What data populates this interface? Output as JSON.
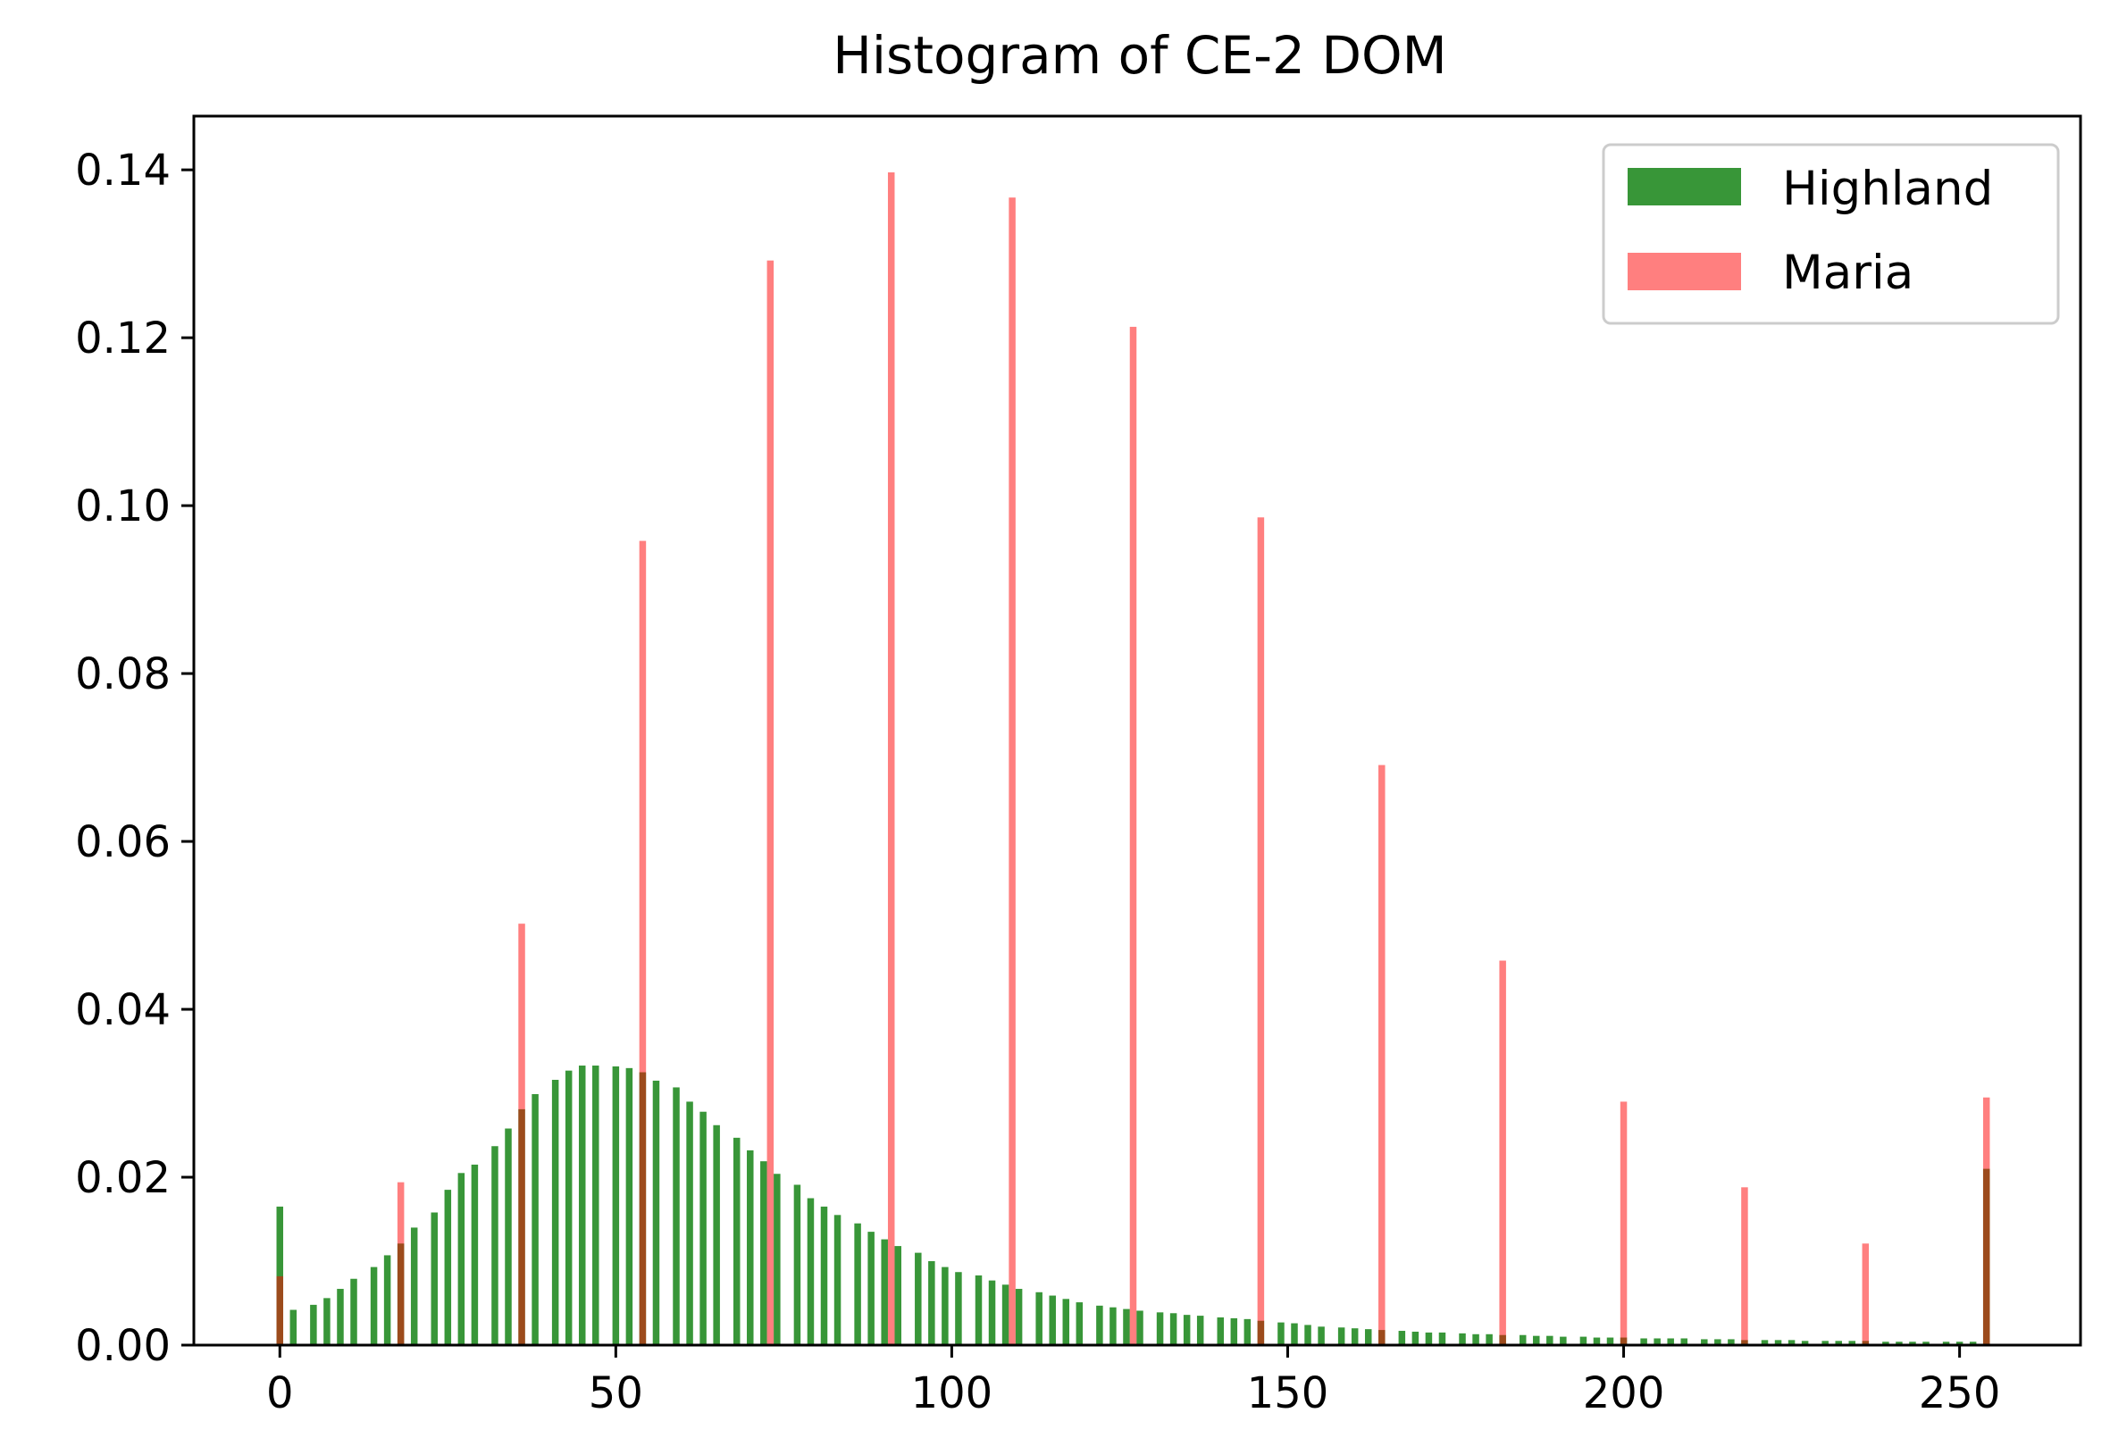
{
  "chart_data": {
    "type": "bar",
    "title": "Histogram of CE-2 DOM",
    "xlabel": "",
    "ylabel": "",
    "xlim": [
      -12.8,
      268
    ],
    "ylim": [
      0,
      0.1464
    ],
    "x_ticks": [
      "0",
      "50",
      "100",
      "150",
      "200",
      "250"
    ],
    "x_tick_values": [
      0,
      50,
      100,
      150,
      200,
      250
    ],
    "y_ticks": [
      "0.00",
      "0.02",
      "0.04",
      "0.06",
      "0.08",
      "0.10",
      "0.12",
      "0.14"
    ],
    "y_tick_values": [
      0,
      0.02,
      0.04,
      0.06,
      0.08,
      0.1,
      0.12,
      0.14
    ],
    "grid": false,
    "legend": {
      "position": "top-right"
    },
    "series": [
      {
        "name": "Highland",
        "color": "#228B22",
        "alpha": 0.9,
        "x": [
          0,
          2,
          5,
          7,
          9,
          11,
          14,
          16,
          18,
          20,
          23,
          25,
          27,
          29,
          32,
          34,
          36,
          38,
          41,
          43,
          45,
          47,
          50,
          52,
          54,
          56,
          59,
          61,
          63,
          65,
          68,
          70,
          72,
          74,
          77,
          79,
          81,
          83,
          86,
          88,
          90,
          92,
          95,
          97,
          99,
          101,
          104,
          106,
          108,
          110,
          113,
          115,
          117,
          119,
          122,
          124,
          126,
          128,
          131,
          133,
          135,
          137,
          140,
          142,
          144,
          146,
          149,
          151,
          153,
          155,
          158,
          160,
          162,
          164,
          167,
          169,
          171,
          173,
          176,
          178,
          180,
          182,
          185,
          187,
          189,
          191,
          194,
          196,
          198,
          200,
          203,
          205,
          207,
          209,
          212,
          214,
          216,
          218,
          221,
          223,
          225,
          227,
          230,
          232,
          234,
          236,
          239,
          241,
          243,
          245,
          248,
          250,
          252,
          254
        ],
        "values": [
          0.0165,
          0.0042,
          0.0048,
          0.0056,
          0.0067,
          0.0079,
          0.0093,
          0.0107,
          0.0121,
          0.014,
          0.0158,
          0.0185,
          0.0205,
          0.0215,
          0.0237,
          0.0258,
          0.0281,
          0.0299,
          0.0316,
          0.0327,
          0.0333,
          0.0333,
          0.0332,
          0.033,
          0.0325,
          0.0315,
          0.0307,
          0.029,
          0.0278,
          0.0262,
          0.0247,
          0.0232,
          0.0219,
          0.0204,
          0.0191,
          0.0175,
          0.0165,
          0.0155,
          0.0145,
          0.0135,
          0.0126,
          0.0118,
          0.011,
          0.01,
          0.0093,
          0.0087,
          0.0083,
          0.0077,
          0.0072,
          0.0067,
          0.0063,
          0.0059,
          0.0055,
          0.0051,
          0.0047,
          0.0045,
          0.0043,
          0.0041,
          0.0039,
          0.0038,
          0.0036,
          0.0035,
          0.0033,
          0.0032,
          0.0031,
          0.0029,
          0.0027,
          0.0026,
          0.0024,
          0.0022,
          0.0021,
          0.002,
          0.0019,
          0.0018,
          0.0017,
          0.0016,
          0.0015,
          0.0015,
          0.0014,
          0.0013,
          0.0013,
          0.0012,
          0.0012,
          0.0011,
          0.0011,
          0.001,
          0.001,
          0.0009,
          0.0009,
          0.0009,
          0.0008,
          0.0008,
          0.0008,
          0.0008,
          0.0007,
          0.0007,
          0.0007,
          0.0006,
          0.0006,
          0.0006,
          0.0006,
          0.0005,
          0.0005,
          0.0005,
          0.0005,
          0.0005,
          0.0004,
          0.0004,
          0.0004,
          0.0004,
          0.0004,
          0.0004,
          0.0004,
          0.021
        ]
      },
      {
        "name": "Maria",
        "color": "#FF0000",
        "alpha": 0.5,
        "x": [
          0,
          18,
          36,
          54,
          73,
          91,
          109,
          127,
          146,
          164,
          182,
          200,
          218,
          236,
          254
        ],
        "values": [
          0.0082,
          0.0194,
          0.0502,
          0.0958,
          0.1292,
          0.1397,
          0.1367,
          0.1213,
          0.0986,
          0.0691,
          0.0458,
          0.029,
          0.0188,
          0.0121,
          0.0295
        ]
      }
    ]
  }
}
